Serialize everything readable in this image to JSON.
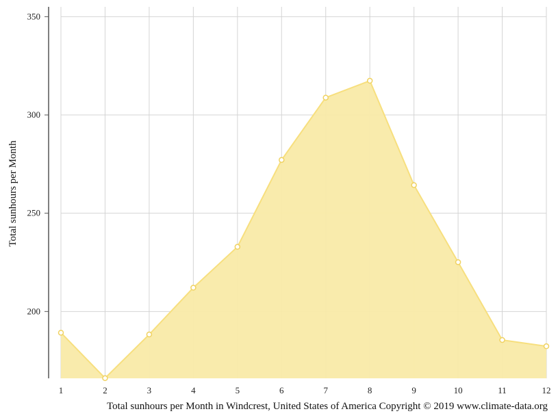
{
  "chart_data": {
    "type": "area",
    "title": "",
    "xlabel": "",
    "ylabel": "Total sunhours per Month",
    "caption": "Total sunhours per Month in Windcrest, United States of America Copyright © 2019 www.climate-data.org",
    "x": [
      1,
      2,
      3,
      4,
      5,
      6,
      7,
      8,
      9,
      10,
      11,
      12
    ],
    "x_tick_labels": [
      "1",
      "2",
      "3",
      "4",
      "5",
      "6",
      "7",
      "8",
      "9",
      "10",
      "11",
      "12"
    ],
    "series": [
      {
        "values": [
          189.2,
          166.1,
          188.3,
          212.1,
          232.9,
          277.1,
          308.8,
          317.4,
          264.3,
          225.1,
          185.5,
          182.3
        ]
      }
    ],
    "ylim": [
      166,
      355
    ],
    "y_ticks": [
      200,
      250,
      300,
      350
    ],
    "y_tick_labels": [
      "200",
      "250",
      "300",
      "350"
    ],
    "grid": true,
    "colors": {
      "fill": "#f9eaa8",
      "line": "#f7df7e",
      "marker_stroke": "#f0d261",
      "marker_fill": "#ffffff",
      "grid": "#d4d4d4",
      "axis": "#555555"
    }
  }
}
